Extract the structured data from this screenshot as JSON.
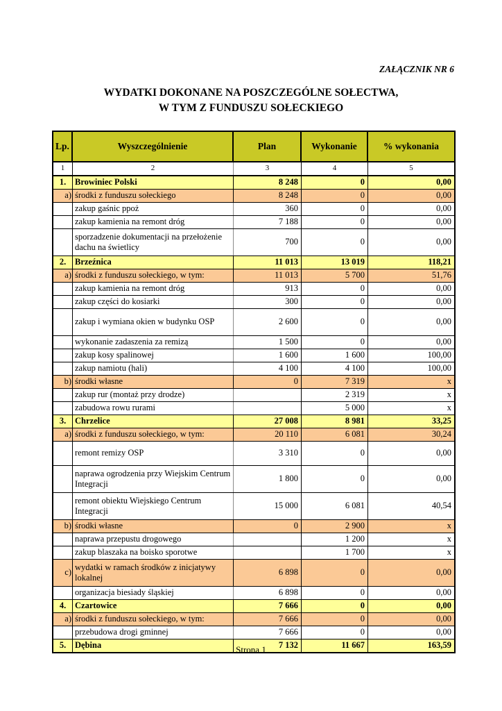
{
  "page": {
    "attachment_label": "ZAŁĄCZNIK NR 6",
    "title_line1": "WYDATKI  DOKONANE NA POSZCZEGÓLNE SOŁECTWA,",
    "title_line2": "W TYM Z FUNDUSZU SOŁECKIEGO",
    "footer": "Strona 1"
  },
  "colors": {
    "header_bg": "#c9c926",
    "section_bg": "#ffff99",
    "sub_bg": "#fbc996",
    "border": "#000000"
  },
  "table": {
    "header": {
      "lp": "Lp.",
      "desc": "Wyszczególnienie",
      "plan": "Plan",
      "wykonanie": "Wykonanie",
      "pct": "% wykonania"
    },
    "column_numbers": [
      "1",
      "2",
      "3",
      "4",
      "5"
    ],
    "rows": [
      {
        "lp": "1.",
        "desc": "Browiniec Polski",
        "plan": "8 248",
        "wyk": "0",
        "pct": "0,00",
        "type": "section"
      },
      {
        "lp": "a)",
        "desc": "środki z funduszu sołeckiego",
        "plan": "8 248",
        "wyk": "0",
        "pct": "0,00",
        "type": "sub"
      },
      {
        "lp": "",
        "desc": "zakup gaśnic ppoż",
        "plan": "360",
        "wyk": "0",
        "pct": "0,00",
        "type": "item"
      },
      {
        "lp": "",
        "desc": "zakup kamienia na remont dróg",
        "plan": "7 188",
        "wyk": "0",
        "pct": "0,00",
        "type": "item"
      },
      {
        "lp": "",
        "desc": "sporzadzenie dokumentacji na przełożenie dachu na świetlicy",
        "plan": "700",
        "wyk": "0",
        "pct": "0,00",
        "type": "item",
        "h": 38
      },
      {
        "lp": "2.",
        "desc": "Brzeźnica",
        "plan": "11 013",
        "wyk": "13 019",
        "pct": "118,21",
        "type": "section"
      },
      {
        "lp": "a)",
        "desc": "środki z funduszu sołeckiego, w tym:",
        "plan": "11 013",
        "wyk": "5 700",
        "pct": "51,76",
        "type": "sub"
      },
      {
        "lp": "",
        "desc": "zakup kamienia na remont dróg",
        "plan": "913",
        "wyk": "0",
        "pct": "0,00",
        "type": "item"
      },
      {
        "lp": "",
        "desc": "zakup części do kosiarki",
        "plan": "300",
        "wyk": "0",
        "pct": "0,00",
        "type": "item"
      },
      {
        "lp": "",
        "desc": "zakup i wymiana okien w budynku OSP",
        "plan": "2 600",
        "wyk": "0",
        "pct": "0,00",
        "type": "item",
        "h": 38
      },
      {
        "lp": "",
        "desc": "wykonanie zadaszenia za remizą",
        "plan": "1 500",
        "wyk": "0",
        "pct": "0,00",
        "type": "item"
      },
      {
        "lp": "",
        "desc": "zakup kosy spalinowej",
        "plan": "1 600",
        "wyk": "1 600",
        "pct": "100,00",
        "type": "item"
      },
      {
        "lp": "",
        "desc": "zakup namiotu (hali)",
        "plan": "4 100",
        "wyk": "4 100",
        "pct": "100,00",
        "type": "item"
      },
      {
        "lp": "b)",
        "desc": "środki własne",
        "plan": "0",
        "wyk": "7 319",
        "pct": "x",
        "type": "sub"
      },
      {
        "lp": "",
        "desc": "zakup rur (montaż przy drodze)",
        "plan": "",
        "wyk": "2 319",
        "pct": "x",
        "type": "item"
      },
      {
        "lp": "",
        "desc": "zabudowa rowu rurami",
        "plan": "",
        "wyk": "5 000",
        "pct": "x",
        "type": "item"
      },
      {
        "lp": "3.",
        "desc": "Chrzelice",
        "plan": "27 008",
        "wyk": "8 981",
        "pct": "33,25",
        "type": "section"
      },
      {
        "lp": "a)",
        "desc": "środki z funduszu sołeckiego, w tym:",
        "plan": "20 110",
        "wyk": "6 081",
        "pct": "30,24",
        "type": "sub"
      },
      {
        "lp": "",
        "desc": "remont remizy OSP",
        "plan": "3 310",
        "wyk": "0",
        "pct": "0,00",
        "type": "item",
        "h": 34
      },
      {
        "lp": "",
        "desc": "naprawa ogrodzenia przy Wiejskim Centrum Integracji",
        "plan": "1 800",
        "wyk": "0",
        "pct": "0,00",
        "type": "item",
        "h": 38
      },
      {
        "lp": "",
        "desc": "remont obiektu Wiejskiego Centrum Integracji",
        "plan": "15 000",
        "wyk": "6 081",
        "pct": "40,54",
        "type": "item",
        "h": 38
      },
      {
        "lp": "b)",
        "desc": "środki własne",
        "plan": "0",
        "wyk": "2 900",
        "pct": "x",
        "type": "sub"
      },
      {
        "lp": "",
        "desc": "naprawa przepustu drogowego",
        "plan": "",
        "wyk": "1 200",
        "pct": "x",
        "type": "item"
      },
      {
        "lp": "",
        "desc": "zakup blaszaka na boisko sporotwe",
        "plan": "",
        "wyk": "1 700",
        "pct": "x",
        "type": "item"
      },
      {
        "lp": "c)",
        "desc": "wydatki w ramach środków z inicjatywy lokalnej",
        "plan": "6 898",
        "wyk": "0",
        "pct": "0,00",
        "type": "sub",
        "h": 38
      },
      {
        "lp": "",
        "desc": "organizacja biesiady śląskiej",
        "plan": "6 898",
        "wyk": "0",
        "pct": "0,00",
        "type": "item"
      },
      {
        "lp": "4.",
        "desc": "Czartowice",
        "plan": "7 666",
        "wyk": "0",
        "pct": "0,00",
        "type": "section"
      },
      {
        "lp": "a)",
        "desc": "środki z funduszu sołeckiego, w tym:",
        "plan": "7 666",
        "wyk": "0",
        "pct": "0,00",
        "type": "sub"
      },
      {
        "lp": "",
        "desc": "przebudowa drogi gminnej",
        "plan": "7 666",
        "wyk": "0",
        "pct": "0,00",
        "type": "item"
      },
      {
        "lp": "5.",
        "desc": "Dębina",
        "plan": "7 132",
        "wyk": "11 667",
        "pct": "163,59",
        "type": "section"
      }
    ]
  }
}
